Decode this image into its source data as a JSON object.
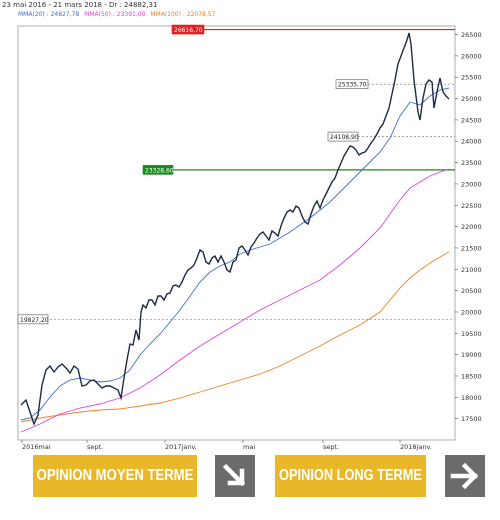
{
  "header": {
    "period": "23 mai 2016 - 21 mars 2018 - Dr : 24882,31"
  },
  "legend": {
    "mma20": "MMA(20) : 24827,78",
    "mma50": "MMA(50) : 23391,00",
    "mma100": "MMA(100) : 22078,57",
    "mma20_color": "#3a6fd8",
    "mma50_color": "#e040e0",
    "mma100_color": "#f08020"
  },
  "chart_data": {
    "type": "line",
    "ylim": [
      17000,
      26700
    ],
    "y_ticks": [
      "17500",
      "18000",
      "18500",
      "19000",
      "19500",
      "20000",
      "20500",
      "21000",
      "21500",
      "22000",
      "22500",
      "23000",
      "23500",
      "24000",
      "24500",
      "25000",
      "25500",
      "26000",
      "26500"
    ],
    "x_ticks": [
      "2016mai",
      "sept.",
      "2017janv.",
      "mai",
      "sept.",
      "2018janv."
    ],
    "levels": [
      {
        "label": "26616,70",
        "value": 26616.7,
        "color": "#e02020"
      },
      {
        "label": "25335,70",
        "value": 25335.7,
        "color": "#888888"
      },
      {
        "label": "24108,90",
        "value": 24108.9,
        "color": "#888888"
      },
      {
        "label": "23328,60",
        "value": 23328.6,
        "color": "#1a8a1a"
      },
      {
        "label": "19827,20",
        "value": 19827.2,
        "color": "#888888"
      }
    ],
    "series": [
      {
        "name": "MMA(20)",
        "color": "#3a6fd8"
      },
      {
        "name": "MMA(50)",
        "color": "#e040e0"
      },
      {
        "name": "MMA(100)",
        "color": "#f08020"
      }
    ]
  },
  "banner": {
    "left_label": "OPINION MOYEN TERME",
    "right_label": "OPINION LONG TERME",
    "left_icon": "arrow-down-right-icon",
    "right_icon": "arrow-right-icon"
  }
}
